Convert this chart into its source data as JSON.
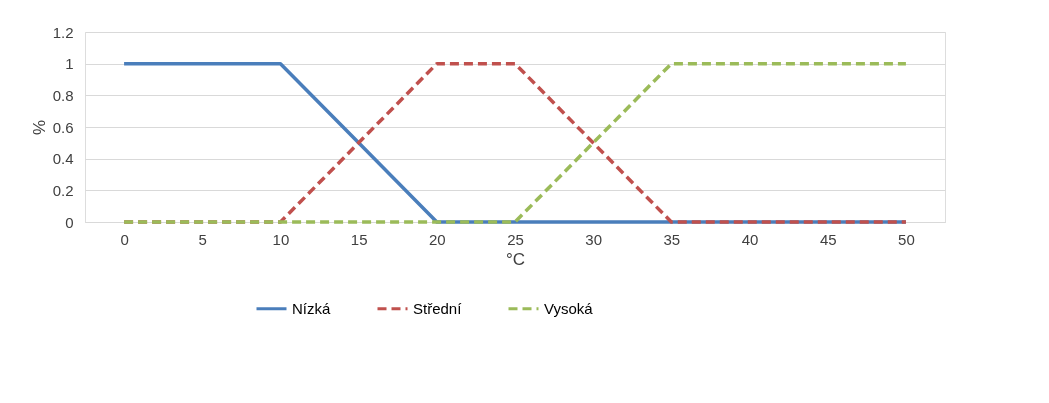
{
  "chart_data": {
    "type": "line",
    "xlabel": "°C",
    "ylabel": "%",
    "categories": [
      "0",
      "5",
      "10",
      "15",
      "20",
      "25",
      "30",
      "35",
      "40",
      "45",
      "50"
    ],
    "series": [
      {
        "name": "Nízká",
        "color": "#4a7ebb",
        "line_style": "solid",
        "values": [
          1,
          1,
          1,
          0.5,
          0,
          0,
          0,
          0,
          0,
          0,
          0
        ]
      },
      {
        "name": "Střední",
        "color": "#c0504d",
        "line_style": "dashed",
        "values": [
          0,
          0,
          0,
          0.5,
          1,
          1,
          0.5,
          0,
          0,
          0,
          0
        ]
      },
      {
        "name": "Vysoká",
        "color": "#9bbb59",
        "line_style": "dashed",
        "values": [
          0,
          0,
          0,
          0,
          0,
          0,
          0.5,
          1,
          1,
          1,
          1
        ]
      }
    ],
    "ylim": [
      0,
      1.2
    ],
    "yticks": [
      0,
      0.2,
      0.4,
      0.6,
      0.8,
      1,
      1.2
    ],
    "grid": "y",
    "legend": "bottom",
    "marker": "none"
  }
}
